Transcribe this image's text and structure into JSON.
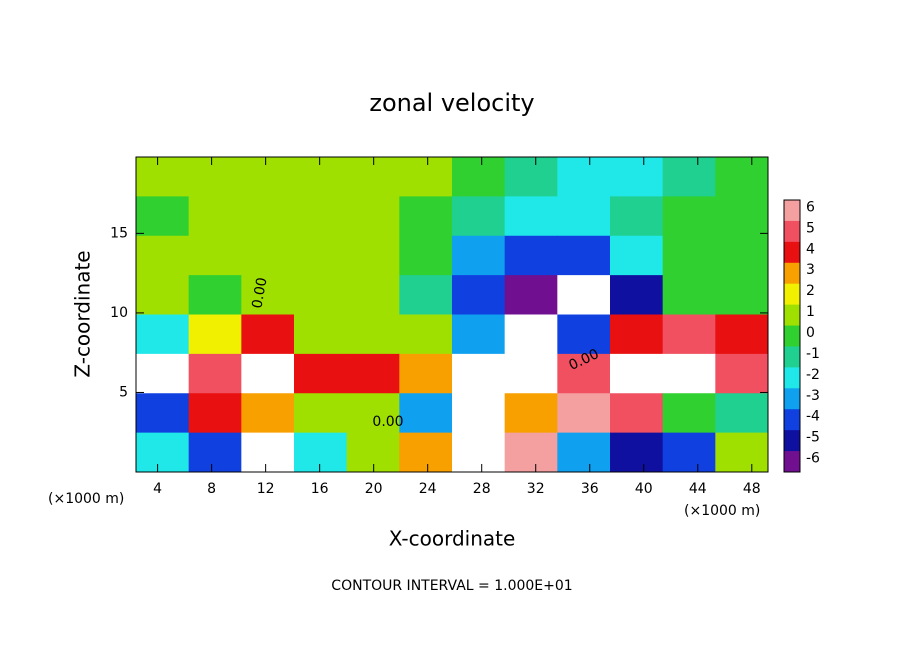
{
  "chart_data": {
    "type": "heatmap",
    "title": "zonal velocity",
    "xlabel": "X-coordinate",
    "ylabel": "Z-coordinate",
    "x_unit_left": "(×1000 m)",
    "x_unit_right": "(×1000 m)",
    "footer": "CONTOUR INTERVAL = 1.000E+01",
    "contour_labels": [
      "0.00",
      "0.00",
      "0.00"
    ],
    "xlim": [
      2.4,
      49.2
    ],
    "ylim": [
      0,
      19.8
    ],
    "xticks": [
      4,
      8,
      12,
      16,
      20,
      24,
      28,
      32,
      36,
      40,
      44,
      48
    ],
    "yticks": [
      5,
      10,
      15
    ],
    "z": [
      [
        1,
        1,
        1,
        1,
        1,
        1,
        0,
        -1,
        -2,
        -2,
        -1,
        0
      ],
      [
        0,
        1,
        1,
        1,
        1,
        0,
        -1,
        -2,
        -2,
        -1,
        0,
        0
      ],
      [
        1,
        1,
        1,
        1,
        1,
        0,
        -3,
        -4,
        -4,
        -2,
        0,
        0
      ],
      [
        1,
        0,
        1,
        1,
        1,
        -1,
        -4,
        -6,
        -8,
        -5,
        0,
        0
      ],
      [
        -2,
        2,
        4,
        1,
        1,
        1,
        -3,
        -8,
        -4,
        4,
        5,
        4
      ],
      [
        -8,
        5,
        8,
        4,
        4,
        3,
        -8,
        -8,
        5,
        8,
        8,
        5
      ],
      [
        -4,
        4,
        3,
        1,
        1,
        -3,
        -8,
        3,
        6,
        5,
        0,
        -1
      ],
      [
        -2,
        -4,
        -8,
        -2,
        1,
        3,
        8,
        6,
        -3,
        -5,
        -4,
        1
      ]
    ],
    "colorbar_ticks": [
      6,
      5,
      4,
      3,
      2,
      1,
      0,
      -1,
      -2,
      -3,
      -4,
      -5,
      -6
    ],
    "colorbar_colors": [
      "#f4a0a0",
      "#f05060",
      "#e81010",
      "#f8a000",
      "#f0f000",
      "#a0e000",
      "#30d030",
      "#20d090",
      "#20e8e8",
      "#10a0f0",
      "#1040e0",
      "#1010a0",
      "#701090"
    ]
  }
}
